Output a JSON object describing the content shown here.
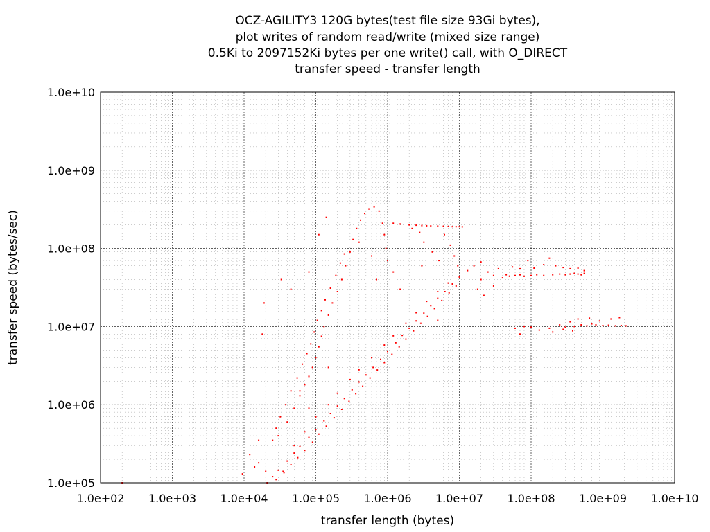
{
  "chart_data": {
    "type": "scatter",
    "title_lines": [
      "OCZ-AGILITY3 120G bytes(test file size 93Gi bytes),",
      "plot writes of random read/write (mixed size range)",
      "0.5Ki to 2097152Ki bytes per one write() call, with O_DIRECT",
      "transfer speed - transfer length"
    ],
    "xlabel": "transfer length (bytes)",
    "ylabel": "transfer speed (bytes/sec)",
    "x_scale": "log",
    "y_scale": "log",
    "xlim": [
      100,
      10000000000
    ],
    "ylim": [
      100000,
      10000000000
    ],
    "x_ticks": [
      "1.0e+02",
      "1.0e+03",
      "1.0e+04",
      "1.0e+05",
      "1.0e+06",
      "1.0e+07",
      "1.0e+08",
      "1.0e+09",
      "1.0e+10"
    ],
    "y_ticks": [
      "1.0e+05",
      "1.0e+06",
      "1.0e+07",
      "1.0e+08",
      "1.0e+09",
      "1.0e+10"
    ],
    "grid": true,
    "point_color": "#ff0000",
    "series": [
      {
        "values": [
          [
            21000,
            100000
          ],
          [
            25000,
            120000
          ],
          [
            30000,
            145000
          ],
          [
            40000,
            190000
          ],
          [
            50000,
            240000
          ],
          [
            60000,
            290000
          ],
          [
            80000,
            380000
          ],
          [
            100000,
            480000
          ],
          [
            130000,
            620000
          ],
          [
            160000,
            770000
          ],
          [
            200000,
            960000
          ],
          [
            250000,
            1200000
          ],
          [
            320000,
            1550000
          ],
          [
            400000,
            1950000
          ],
          [
            500000,
            2400000
          ],
          [
            630000,
            3000000
          ],
          [
            800000,
            3800000
          ],
          [
            1000000,
            4800000
          ],
          [
            1300000,
            6200000
          ],
          [
            1600000,
            7700000
          ],
          [
            2000000,
            9500000
          ],
          [
            2500000,
            11800000
          ],
          [
            3200000,
            14800000
          ],
          [
            4000000,
            18500000
          ],
          [
            5000000,
            23000000
          ],
          [
            6300000,
            28000000
          ],
          [
            8000000,
            35000000
          ],
          [
            10000000,
            43000000
          ],
          [
            13000000,
            52000000
          ],
          [
            16000000,
            60000000
          ],
          [
            20000000,
            67000000
          ],
          [
            28000,
            110000
          ],
          [
            36000,
            135000
          ],
          [
            45000,
            170000
          ],
          [
            56000,
            210000
          ],
          [
            70000,
            260000
          ],
          [
            90000,
            330000
          ],
          [
            110000,
            420000
          ],
          [
            140000,
            530000
          ],
          [
            180000,
            680000
          ],
          [
            230000,
            870000
          ],
          [
            290000,
            1100000
          ],
          [
            360000,
            1380000
          ],
          [
            450000,
            1720000
          ],
          [
            570000,
            2200000
          ],
          [
            720000,
            2780000
          ],
          [
            900000,
            3450000
          ],
          [
            1150000,
            4400000
          ],
          [
            1450000,
            5500000
          ],
          [
            1800000,
            6900000
          ],
          [
            2300000,
            8800000
          ],
          [
            2900000,
            11000000
          ],
          [
            3600000,
            13500000
          ],
          [
            4500000,
            17000000
          ],
          [
            5700000,
            21500000
          ],
          [
            7200000,
            27000000
          ],
          [
            9000000,
            33000000
          ],
          [
            35000,
            140000
          ],
          [
            50000,
            300000
          ],
          [
            70000,
            450000
          ],
          [
            100000,
            700000
          ],
          [
            150000,
            1000000
          ],
          [
            200000,
            1400000
          ],
          [
            300000,
            2100000
          ],
          [
            400000,
            2800000
          ],
          [
            600000,
            4000000
          ],
          [
            900000,
            5800000
          ],
          [
            1200000,
            7600000
          ],
          [
            1800000,
            11000000
          ],
          [
            2500000,
            15000000
          ],
          [
            3500000,
            21000000
          ],
          [
            5000000,
            28000000
          ],
          [
            7000000,
            36000000
          ],
          [
            30000,
            400000
          ],
          [
            40000,
            600000
          ],
          [
            50000,
            900000
          ],
          [
            60000,
            1300000
          ],
          [
            70000,
            1800000
          ],
          [
            80000,
            2300000
          ],
          [
            90000,
            3000000
          ],
          [
            100000,
            4000000
          ],
          [
            110000,
            5500000
          ],
          [
            120000,
            7500000
          ],
          [
            130000,
            10000000
          ],
          [
            150000,
            14000000
          ],
          [
            170000,
            20000000
          ],
          [
            200000,
            28000000
          ],
          [
            230000,
            40000000
          ],
          [
            260000,
            60000000
          ],
          [
            300000,
            90000000
          ],
          [
            330000,
            130000000
          ],
          [
            370000,
            180000000
          ],
          [
            420000,
            230000000
          ],
          [
            480000,
            280000000
          ],
          [
            550000,
            320000000
          ],
          [
            650000,
            340000000
          ],
          [
            760000,
            300000000
          ],
          [
            850000,
            210000000
          ],
          [
            900000,
            150000000
          ],
          [
            950000,
            100000000
          ],
          [
            1000000,
            70000000
          ],
          [
            1200000,
            50000000
          ],
          [
            25000,
            350000
          ],
          [
            28000,
            500000
          ],
          [
            32000,
            700000
          ],
          [
            38000,
            1000000
          ],
          [
            45000,
            1500000
          ],
          [
            55000,
            2200000
          ],
          [
            65000,
            3300000
          ],
          [
            75000,
            4500000
          ],
          [
            85000,
            6000000
          ],
          [
            95000,
            8500000
          ],
          [
            105000,
            12000000
          ],
          [
            120000,
            16000000
          ],
          [
            135000,
            22000000
          ],
          [
            160000,
            31000000
          ],
          [
            190000,
            45000000
          ],
          [
            220000,
            65000000
          ],
          [
            250000,
            85000000
          ],
          [
            1200000,
            210000000
          ],
          [
            1500000,
            205000000
          ],
          [
            2000000,
            200000000
          ],
          [
            2500000,
            198000000
          ],
          [
            3000000,
            196000000
          ],
          [
            3500000,
            195000000
          ],
          [
            4000000,
            194000000
          ],
          [
            5000000,
            193000000
          ],
          [
            6000000,
            192000000
          ],
          [
            7000000,
            191000000
          ],
          [
            8000000,
            190000000
          ],
          [
            9000000,
            190000000
          ],
          [
            10000000,
            190000000
          ],
          [
            11000000,
            189000000
          ],
          [
            2200000,
            180000000
          ],
          [
            2800000,
            160000000
          ],
          [
            3200000,
            120000000
          ],
          [
            4200000,
            90000000
          ],
          [
            5200000,
            70000000
          ],
          [
            6200000,
            150000000
          ],
          [
            7500000,
            110000000
          ],
          [
            8500000,
            80000000
          ],
          [
            9500000,
            60000000
          ],
          [
            25000000,
            50000000
          ],
          [
            30000000,
            45000000
          ],
          [
            35000000,
            55000000
          ],
          [
            40000000,
            42000000
          ],
          [
            45000000,
            46000000
          ],
          [
            50000000,
            44000000
          ],
          [
            60000000,
            45000000
          ],
          [
            70000000,
            46000000
          ],
          [
            80000000,
            44000000
          ],
          [
            100000000,
            45000000
          ],
          [
            120000000,
            46000000
          ],
          [
            150000000,
            45000000
          ],
          [
            200000000,
            46000000
          ],
          [
            250000000,
            47000000
          ],
          [
            300000000,
            46000000
          ],
          [
            350000000,
            47000000
          ],
          [
            400000000,
            48000000
          ],
          [
            450000000,
            47000000
          ],
          [
            500000000,
            46000000
          ],
          [
            550000000,
            48000000
          ],
          [
            55000000,
            58000000
          ],
          [
            70000000,
            55000000
          ],
          [
            90000000,
            70000000
          ],
          [
            110000000,
            56000000
          ],
          [
            150000000,
            62000000
          ],
          [
            180000000,
            75000000
          ],
          [
            220000000,
            60000000
          ],
          [
            280000000,
            57000000
          ],
          [
            350000000,
            55000000
          ],
          [
            450000000,
            56000000
          ],
          [
            550000000,
            52000000
          ],
          [
            20000000,
            40000000
          ],
          [
            18000000,
            30000000
          ],
          [
            22000000,
            25000000
          ],
          [
            30000000,
            33000000
          ],
          [
            60000000,
            9500000
          ],
          [
            70000000,
            8000000
          ],
          [
            80000000,
            10000000
          ],
          [
            100000000,
            9800000
          ],
          [
            130000000,
            9000000
          ],
          [
            180000000,
            9500000
          ],
          [
            250000000,
            10500000
          ],
          [
            300000000,
            9800000
          ],
          [
            400000000,
            10000000
          ],
          [
            500000000,
            10500000
          ],
          [
            600000000,
            10200000
          ],
          [
            700000000,
            10800000
          ],
          [
            800000000,
            10500000
          ],
          [
            1000000000,
            10300000
          ],
          [
            1200000000,
            10400000
          ],
          [
            1500000000,
            10200000
          ],
          [
            1800000000,
            10300000
          ],
          [
            2100000000,
            10200000
          ],
          [
            350000000,
            11500000
          ],
          [
            450000000,
            12500000
          ],
          [
            650000000,
            12800000
          ],
          [
            900000000,
            11800000
          ],
          [
            1300000000,
            12500000
          ],
          [
            1700000000,
            13000000
          ],
          [
            200000000,
            8500000
          ],
          [
            280000000,
            9200000
          ],
          [
            380000000,
            8800000
          ],
          [
            200,
            100000
          ],
          [
            9500,
            130000
          ],
          [
            14000,
            160000
          ],
          [
            16000,
            350000
          ],
          [
            19000,
            20000000
          ],
          [
            18000,
            8000000
          ],
          [
            33000,
            40000000
          ],
          [
            45000,
            30000000
          ],
          [
            80000,
            50000000
          ],
          [
            110000,
            150000000
          ],
          [
            140000,
            250000000
          ],
          [
            400000,
            120000000
          ],
          [
            600000,
            80000000
          ],
          [
            700000,
            40000000
          ],
          [
            1500000,
            30000000
          ],
          [
            3000000,
            60000000
          ],
          [
            5000000,
            12000000
          ],
          [
            12000,
            230000
          ],
          [
            16000,
            180000
          ],
          [
            20000,
            140000
          ],
          [
            60000,
            1500000
          ],
          [
            80000,
            900000
          ],
          [
            150000,
            3000000
          ]
        ]
      }
    ]
  }
}
